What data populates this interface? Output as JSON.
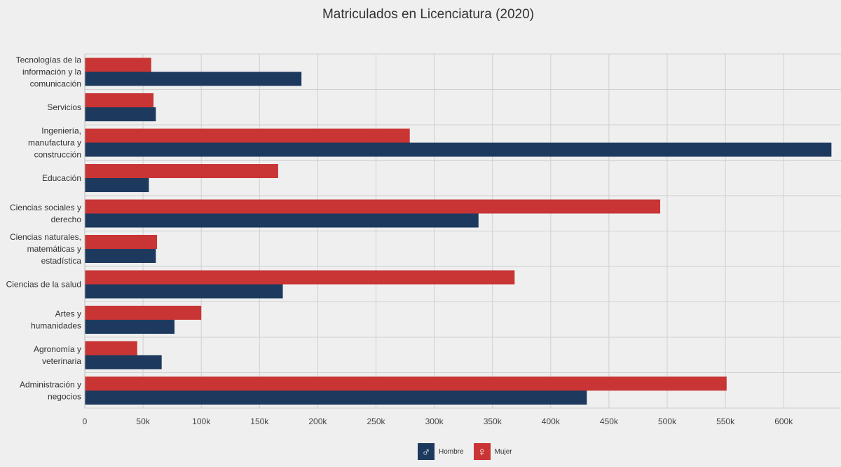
{
  "chart_data": {
    "type": "bar",
    "orientation": "horizontal",
    "title": "Matriculados en Licenciatura (2020)",
    "categories": [
      "Tecnologías de la información y la comunicación",
      "Servicios",
      "Ingeniería, manufactura y construcción",
      "Educación",
      "Ciencias sociales y derecho",
      "Ciencias naturales, matemáticas y estadística",
      "Ciencias de la salud",
      "Artes y humanidades",
      "Agronomía y veterinaria",
      "Administración y negocios"
    ],
    "category_lines": [
      [
        "Tecnologías de la",
        "información y la",
        "comunicación"
      ],
      [
        "Servicios"
      ],
      [
        "Ingeniería,",
        "manufactura y",
        "construcción"
      ],
      [
        "Educación"
      ],
      [
        "Ciencias sociales y",
        "derecho"
      ],
      [
        "Ciencias naturales,",
        "matemáticas y",
        "estadística"
      ],
      [
        "Ciencias de la salud"
      ],
      [
        "Artes y",
        "humanidades"
      ],
      [
        "Agronomía y",
        "veterinaria"
      ],
      [
        "Administración y",
        "negocios"
      ]
    ],
    "series": [
      {
        "name": "Mujer",
        "color": "#c93434",
        "values": [
          57000,
          59000,
          279000,
          166000,
          494000,
          62000,
          369000,
          100000,
          45000,
          551000
        ]
      },
      {
        "name": "Hombre",
        "color": "#1d3a5e",
        "values": [
          186000,
          61000,
          641000,
          55000,
          338000,
          61000,
          170000,
          77000,
          66000,
          431000
        ]
      }
    ],
    "xlim": [
      0,
      645000
    ],
    "x_ticks": [
      0,
      50000,
      100000,
      150000,
      200000,
      250000,
      300000,
      350000,
      400000,
      450000,
      500000,
      550000,
      600000
    ],
    "x_tick_labels": [
      "0",
      "50k",
      "100k",
      "150k",
      "200k",
      "250k",
      "300k",
      "350k",
      "400k",
      "450k",
      "500k",
      "550k",
      "600k"
    ],
    "grid": true,
    "legend_position": "bottom-center"
  },
  "legend": [
    {
      "label": "Hombre",
      "icon": "male-icon",
      "symbol": "♂",
      "color": "#1d3a5e"
    },
    {
      "label": "Mujer",
      "icon": "female-icon",
      "symbol": "♀",
      "color": "#c93434"
    }
  ]
}
